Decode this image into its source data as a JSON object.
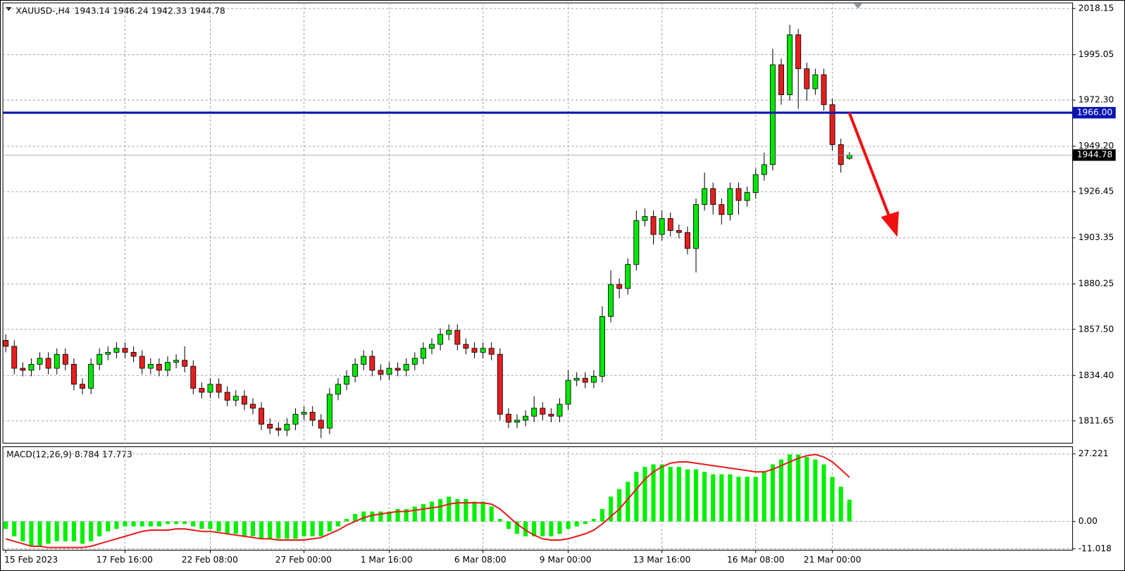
{
  "chart_data": [
    {
      "type": "candlestick",
      "title": "XAUUSD-,H4",
      "categories": [
        "15 Feb 2023",
        null,
        null,
        null,
        null,
        null,
        null,
        null,
        null,
        null,
        null,
        null,
        null,
        null,
        "17 Feb 16:00",
        null,
        null,
        null,
        null,
        null,
        null,
        null,
        null,
        null,
        "22 Feb 08:00",
        null,
        null,
        null,
        null,
        null,
        null,
        null,
        null,
        null,
        null,
        "27 Feb 00:00",
        null,
        null,
        null,
        null,
        null,
        null,
        null,
        null,
        null,
        "1 Mar 16:00",
        null,
        null,
        null,
        null,
        null,
        null,
        null,
        null,
        null,
        null,
        "6 Mar 08:00",
        null,
        null,
        null,
        null,
        null,
        null,
        null,
        null,
        null,
        "9 Mar 00:00",
        null,
        null,
        null,
        null,
        null,
        null,
        null,
        null,
        null,
        null,
        "13 Mar 16:00",
        null,
        null,
        null,
        null,
        null,
        null,
        null,
        null,
        null,
        null,
        "16 Mar 08:00",
        null,
        null,
        null,
        null,
        null,
        null,
        null,
        null,
        "21 Mar 00:00",
        null,
        null
      ],
      "open": [
        1852,
        1849,
        1838,
        1837,
        1840,
        1843,
        1838,
        1845,
        1840,
        1830,
        1828,
        1840,
        1845,
        1846,
        1848,
        1846,
        1844,
        1838,
        1840,
        1837,
        1841,
        1842,
        1839,
        1828,
        1826,
        1830,
        1826,
        1822,
        1824,
        1820,
        1818,
        1810,
        1808,
        1807,
        1810,
        1815,
        1816,
        1812,
        1808,
        1825,
        1830,
        1834,
        1840,
        1844,
        1837,
        1835,
        1838,
        1837,
        1840,
        1843,
        1848,
        1850,
        1855,
        1857,
        1850,
        1848,
        1846,
        1848,
        1845,
        1815,
        1811,
        1812,
        1814,
        1818,
        1815,
        1814,
        1820,
        1832,
        1833,
        1831,
        1834,
        1864,
        1880,
        1878,
        1890,
        1912,
        1914,
        1905,
        1913,
        1907,
        1906,
        1898,
        1920,
        1928,
        1920,
        1915,
        1928,
        1922,
        1926,
        1935,
        1940,
        1990,
        1975,
        2005,
        1988,
        1978,
        1985,
        1970,
        1950,
        1943.14
      ],
      "high": [
        1855,
        1852,
        1841,
        1843,
        1846,
        1846,
        1848,
        1848,
        1843,
        1833,
        1843,
        1848,
        1849,
        1851,
        1851,
        1849,
        1847,
        1843,
        1843,
        1844,
        1845,
        1849,
        1842,
        1831,
        1833,
        1833,
        1829,
        1827,
        1827,
        1823,
        1821,
        1813,
        1811,
        1813,
        1818,
        1819,
        1819,
        1815,
        1828,
        1833,
        1837,
        1843,
        1847,
        1847,
        1840,
        1841,
        1841,
        1843,
        1846,
        1851,
        1853,
        1858,
        1860,
        1860,
        1853,
        1851,
        1851,
        1851,
        1848,
        1818,
        1815,
        1817,
        1824,
        1821,
        1818,
        1823,
        1837,
        1836,
        1836,
        1837,
        1869,
        1887,
        1883,
        1893,
        1917,
        1918,
        1917,
        1917,
        1916,
        1910,
        1909,
        1923,
        1936,
        1931,
        1923,
        1931,
        1931,
        1929,
        1938,
        1946,
        1998,
        1993,
        2010,
        2008,
        1991,
        1988,
        1988,
        1973,
        1953,
        1946.24
      ],
      "low": [
        1846,
        1835,
        1834,
        1834,
        1837,
        1835,
        1835,
        1837,
        1827,
        1825,
        1825,
        1837,
        1842,
        1843,
        1843,
        1841,
        1835,
        1835,
        1834,
        1834,
        1838,
        1836,
        1825,
        1823,
        1823,
        1823,
        1819,
        1819,
        1817,
        1815,
        1807,
        1805,
        1804,
        1804,
        1807,
        1812,
        1809,
        1803,
        1805,
        1822,
        1827,
        1831,
        1837,
        1834,
        1832,
        1832,
        1834,
        1834,
        1837,
        1840,
        1845,
        1847,
        1852,
        1847,
        1845,
        1843,
        1843,
        1842,
        1812,
        1808,
        1808,
        1809,
        1811,
        1812,
        1811,
        1811,
        1817,
        1829,
        1828,
        1828,
        1831,
        1861,
        1873,
        1875,
        1887,
        1909,
        1900,
        1902,
        1904,
        1903,
        1895,
        1886,
        1917,
        1915,
        1910,
        1912,
        1915,
        1919,
        1923,
        1932,
        1937,
        1970,
        1972,
        1968,
        1972,
        1975,
        1967,
        1947,
        1936,
        1942.33
      ],
      "close": [
        1849,
        1838,
        1837,
        1840,
        1843,
        1838,
        1845,
        1840,
        1830,
        1828,
        1840,
        1845,
        1846,
        1848,
        1846,
        1844,
        1838,
        1840,
        1837,
        1841,
        1842,
        1839,
        1828,
        1826,
        1830,
        1826,
        1822,
        1824,
        1820,
        1818,
        1810,
        1808,
        1807,
        1810,
        1815,
        1816,
        1812,
        1808,
        1825,
        1830,
        1834,
        1840,
        1844,
        1837,
        1835,
        1838,
        1837,
        1840,
        1843,
        1848,
        1850,
        1855,
        1857,
        1850,
        1848,
        1846,
        1848,
        1845,
        1815,
        1811,
        1812,
        1814,
        1818,
        1815,
        1814,
        1820,
        1832,
        1833,
        1831,
        1834,
        1864,
        1880,
        1878,
        1890,
        1912,
        1914,
        1905,
        1913,
        1907,
        1906,
        1898,
        1920,
        1928,
        1920,
        1915,
        1928,
        1922,
        1926,
        1935,
        1940,
        1990,
        1975,
        2005,
        1988,
        1978,
        1985,
        1970,
        1950,
        1940,
        1944.78
      ],
      "up_color": "#00e600",
      "down_color": "#e61e1e",
      "ylim": [
        1800.5,
        2021
      ],
      "yticks": [
        1811.65,
        {
          "value": 1834.4,
          "label": "1834.40"
        },
        {
          "value": 1857.5,
          "label": "1857.50"
        },
        1880.25,
        1903.35,
        1926.45,
        {
          "value": 1949.2,
          "label": "1949.20"
        },
        {
          "value": 1972.3,
          "label": "1972.30"
        },
        1995.05,
        2018.15
      ],
      "grid": true,
      "horizontal_line": {
        "value": 1966,
        "label": "1966.00",
        "color": "#0a14b4"
      }
    },
    {
      "type": "macd",
      "title": "MACD(12,26,9)",
      "histogram": {
        "color": "#00f000",
        "values": [
          -3,
          -6,
          -8,
          -10,
          -10,
          -9,
          -8,
          -8,
          -8,
          -9,
          -8,
          -6,
          -4,
          -3,
          -2,
          -2,
          -2,
          -2,
          -2,
          -1,
          -1,
          -1,
          -2,
          -3,
          -3,
          -4,
          -5,
          -5,
          -6,
          -6,
          -7,
          -7,
          -7,
          -7,
          -7,
          -6,
          -6,
          -6,
          -4,
          -2,
          1,
          3,
          4,
          4,
          4,
          4,
          5,
          5,
          6,
          7,
          8,
          9,
          10,
          9,
          9,
          8,
          8,
          6,
          1,
          -3,
          -5,
          -6,
          -6,
          -6,
          -6,
          -5,
          -3,
          -2,
          -1,
          1,
          5,
          10,
          13,
          16,
          20,
          22,
          23,
          23,
          22,
          22,
          21,
          21,
          20,
          19,
          19,
          19,
          18,
          18,
          18,
          20,
          23,
          25,
          27,
          27,
          26,
          25,
          23,
          18,
          14,
          8.784
        ]
      },
      "signal": {
        "color": "#e61e1e",
        "values": [
          -7,
          -8,
          -9,
          -10,
          -10,
          -10.5,
          -10.5,
          -10.5,
          -10.5,
          -10.5,
          -10,
          -9,
          -8,
          -7,
          -6,
          -5,
          -4,
          -3.5,
          -3.5,
          -3.5,
          -3,
          -3,
          -3.5,
          -4,
          -4,
          -4.5,
          -5,
          -5.5,
          -6,
          -6.5,
          -7,
          -7,
          -7.5,
          -7.5,
          -7.5,
          -7.5,
          -7,
          -6.5,
          -5,
          -3.5,
          -1.5,
          0,
          1.5,
          2.5,
          3,
          3.5,
          4,
          4,
          4.5,
          5,
          5.5,
          6,
          7,
          7.5,
          7.5,
          7.5,
          7.5,
          7,
          5,
          2,
          -1,
          -3.5,
          -5.5,
          -7,
          -7.5,
          -7.5,
          -7,
          -6,
          -5,
          -3.5,
          -1,
          2,
          5,
          9,
          13,
          17,
          20,
          22,
          23.5,
          24,
          24,
          23.5,
          23,
          22.5,
          22,
          21.5,
          21,
          20.5,
          20,
          20,
          21,
          22.5,
          24,
          25.5,
          26.5,
          27,
          26,
          24,
          21,
          17.773
        ]
      },
      "ylim": [
        -11.58,
        30.12
      ],
      "yticks": [
        -11.018,
        {
          "value": 0,
          "label": "0.00"
        },
        27.221
      ],
      "grid": true
    }
  ]
}
